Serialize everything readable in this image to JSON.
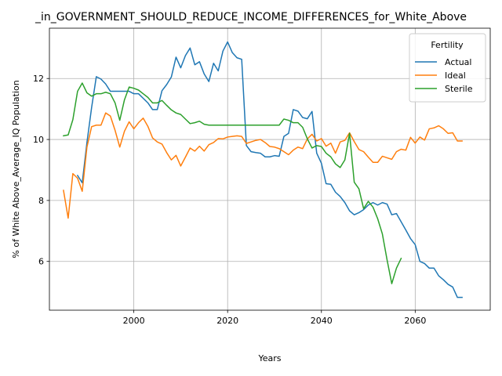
{
  "chart_data": {
    "type": "line",
    "title": "_in_GOVERNMENT_SHOULD_REDUCE_INCOME_DIFFERENCES_for_White_Above",
    "xlabel": "Years",
    "ylabel": "% of White Above_Average_IQ Population",
    "xlim": [
      1982,
      2076
    ],
    "ylim": [
      4.4,
      13.65
    ],
    "xticks": [
      2000,
      2020,
      2040,
      2060
    ],
    "yticks": [
      6,
      8,
      10,
      12
    ],
    "grid": true,
    "legend": {
      "title": "Fertility",
      "placement": "upper-right"
    },
    "series": [
      {
        "name": "Actual",
        "color": "#1f77b4",
        "points": [
          [
            1988,
            8.82
          ],
          [
            1989,
            8.58
          ],
          [
            1990,
            9.9
          ],
          [
            1991,
            11.05
          ],
          [
            1992,
            12.06
          ],
          [
            1993,
            11.98
          ],
          [
            1994,
            11.82
          ],
          [
            1995,
            11.58
          ],
          [
            1996,
            11.58
          ],
          [
            1997,
            11.58
          ],
          [
            1998,
            11.58
          ],
          [
            1999,
            11.58
          ],
          [
            2000,
            11.5
          ],
          [
            2001,
            11.5
          ],
          [
            2002,
            11.35
          ],
          [
            2003,
            11.2
          ],
          [
            2004,
            10.98
          ],
          [
            2005,
            10.98
          ],
          [
            2006,
            11.6
          ],
          [
            2007,
            11.8
          ],
          [
            2008,
            12.05
          ],
          [
            2009,
            12.7
          ],
          [
            2010,
            12.35
          ],
          [
            2011,
            12.75
          ],
          [
            2012,
            13.0
          ],
          [
            2013,
            12.45
          ],
          [
            2014,
            12.55
          ],
          [
            2015,
            12.15
          ],
          [
            2016,
            11.9
          ],
          [
            2017,
            12.5
          ],
          [
            2018,
            12.25
          ],
          [
            2019,
            12.9
          ],
          [
            2020,
            13.2
          ],
          [
            2021,
            12.85
          ],
          [
            2022,
            12.68
          ],
          [
            2023,
            12.63
          ],
          [
            2024,
            9.8
          ],
          [
            2025,
            9.6
          ],
          [
            2026,
            9.57
          ],
          [
            2027,
            9.55
          ],
          [
            2028,
            9.43
          ],
          [
            2029,
            9.43
          ],
          [
            2030,
            9.47
          ],
          [
            2031,
            9.45
          ],
          [
            2032,
            10.1
          ],
          [
            2033,
            10.2
          ],
          [
            2034,
            10.98
          ],
          [
            2035,
            10.93
          ],
          [
            2036,
            10.72
          ],
          [
            2037,
            10.68
          ],
          [
            2038,
            10.92
          ],
          [
            2039,
            9.55
          ],
          [
            2040,
            9.22
          ],
          [
            2041,
            8.55
          ],
          [
            2042,
            8.53
          ],
          [
            2043,
            8.27
          ],
          [
            2044,
            8.13
          ],
          [
            2045,
            7.93
          ],
          [
            2046,
            7.66
          ],
          [
            2047,
            7.53
          ],
          [
            2048,
            7.6
          ],
          [
            2049,
            7.7
          ],
          [
            2050,
            7.85
          ],
          [
            2051,
            7.93
          ],
          [
            2052,
            7.85
          ],
          [
            2053,
            7.93
          ],
          [
            2054,
            7.88
          ],
          [
            2055,
            7.53
          ],
          [
            2056,
            7.57
          ],
          [
            2057,
            7.3
          ],
          [
            2058,
            7.03
          ],
          [
            2059,
            6.75
          ],
          [
            2060,
            6.55
          ],
          [
            2061,
            6.0
          ],
          [
            2062,
            5.93
          ],
          [
            2063,
            5.78
          ],
          [
            2064,
            5.78
          ],
          [
            2065,
            5.53
          ],
          [
            2066,
            5.4
          ],
          [
            2067,
            5.25
          ],
          [
            2068,
            5.16
          ],
          [
            2069,
            4.82
          ],
          [
            2070,
            4.82
          ]
        ]
      },
      {
        "name": "Ideal",
        "color": "#ff7f0e",
        "points": [
          [
            1985,
            8.33
          ],
          [
            1986,
            7.42
          ],
          [
            1987,
            8.88
          ],
          [
            1988,
            8.73
          ],
          [
            1989,
            8.3
          ],
          [
            1990,
            9.75
          ],
          [
            1991,
            10.42
          ],
          [
            1992,
            10.47
          ],
          [
            1993,
            10.47
          ],
          [
            1994,
            10.87
          ],
          [
            1995,
            10.77
          ],
          [
            1996,
            10.3
          ],
          [
            1997,
            9.75
          ],
          [
            1998,
            10.27
          ],
          [
            1999,
            10.58
          ],
          [
            2000,
            10.35
          ],
          [
            2001,
            10.55
          ],
          [
            2002,
            10.7
          ],
          [
            2003,
            10.43
          ],
          [
            2004,
            10.05
          ],
          [
            2005,
            9.92
          ],
          [
            2006,
            9.85
          ],
          [
            2007,
            9.57
          ],
          [
            2008,
            9.33
          ],
          [
            2009,
            9.48
          ],
          [
            2010,
            9.13
          ],
          [
            2011,
            9.42
          ],
          [
            2012,
            9.72
          ],
          [
            2013,
            9.62
          ],
          [
            2014,
            9.78
          ],
          [
            2015,
            9.62
          ],
          [
            2016,
            9.83
          ],
          [
            2017,
            9.9
          ],
          [
            2018,
            10.03
          ],
          [
            2019,
            10.02
          ],
          [
            2020,
            10.08
          ],
          [
            2021,
            10.1
          ],
          [
            2022,
            10.12
          ],
          [
            2023,
            10.1
          ],
          [
            2024,
            9.87
          ],
          [
            2025,
            9.92
          ],
          [
            2026,
            9.97
          ],
          [
            2027,
            10.0
          ],
          [
            2028,
            9.9
          ],
          [
            2029,
            9.77
          ],
          [
            2030,
            9.75
          ],
          [
            2031,
            9.7
          ],
          [
            2032,
            9.6
          ],
          [
            2033,
            9.5
          ],
          [
            2034,
            9.65
          ],
          [
            2035,
            9.75
          ],
          [
            2036,
            9.7
          ],
          [
            2037,
            10.02
          ],
          [
            2038,
            10.17
          ],
          [
            2039,
            9.95
          ],
          [
            2040,
            10.03
          ],
          [
            2041,
            9.78
          ],
          [
            2042,
            9.88
          ],
          [
            2043,
            9.55
          ],
          [
            2044,
            9.92
          ],
          [
            2045,
            9.97
          ],
          [
            2046,
            10.22
          ],
          [
            2047,
            9.93
          ],
          [
            2048,
            9.67
          ],
          [
            2049,
            9.6
          ],
          [
            2050,
            9.42
          ],
          [
            2051,
            9.25
          ],
          [
            2052,
            9.25
          ],
          [
            2053,
            9.45
          ],
          [
            2054,
            9.4
          ],
          [
            2055,
            9.35
          ],
          [
            2056,
            9.6
          ],
          [
            2057,
            9.68
          ],
          [
            2058,
            9.65
          ],
          [
            2059,
            10.07
          ],
          [
            2060,
            9.88
          ],
          [
            2061,
            10.08
          ],
          [
            2062,
            9.98
          ],
          [
            2063,
            10.35
          ],
          [
            2064,
            10.38
          ],
          [
            2065,
            10.45
          ],
          [
            2066,
            10.35
          ],
          [
            2067,
            10.2
          ],
          [
            2068,
            10.22
          ],
          [
            2069,
            9.95
          ],
          [
            2070,
            9.95
          ]
        ]
      },
      {
        "name": "Sterile",
        "color": "#2ca02c",
        "points": [
          [
            1985,
            10.12
          ],
          [
            1986,
            10.15
          ],
          [
            1987,
            10.65
          ],
          [
            1988,
            11.58
          ],
          [
            1989,
            11.85
          ],
          [
            1990,
            11.53
          ],
          [
            1991,
            11.42
          ],
          [
            1992,
            11.5
          ],
          [
            1993,
            11.5
          ],
          [
            1994,
            11.55
          ],
          [
            1995,
            11.5
          ],
          [
            1996,
            11.2
          ],
          [
            1997,
            10.63
          ],
          [
            1998,
            11.3
          ],
          [
            1999,
            11.72
          ],
          [
            2000,
            11.68
          ],
          [
            2001,
            11.62
          ],
          [
            2002,
            11.5
          ],
          [
            2003,
            11.38
          ],
          [
            2004,
            11.2
          ],
          [
            2005,
            11.2
          ],
          [
            2006,
            11.28
          ],
          [
            2007,
            11.12
          ],
          [
            2008,
            10.97
          ],
          [
            2009,
            10.87
          ],
          [
            2010,
            10.82
          ],
          [
            2011,
            10.67
          ],
          [
            2012,
            10.52
          ],
          [
            2013,
            10.55
          ],
          [
            2014,
            10.6
          ],
          [
            2015,
            10.5
          ],
          [
            2016,
            10.47
          ],
          [
            2017,
            10.47
          ],
          [
            2018,
            10.47
          ],
          [
            2019,
            10.47
          ],
          [
            2020,
            10.47
          ],
          [
            2021,
            10.47
          ],
          [
            2022,
            10.47
          ],
          [
            2023,
            10.47
          ],
          [
            2024,
            10.47
          ],
          [
            2025,
            10.47
          ],
          [
            2026,
            10.47
          ],
          [
            2027,
            10.47
          ],
          [
            2028,
            10.47
          ],
          [
            2029,
            10.47
          ],
          [
            2030,
            10.47
          ],
          [
            2031,
            10.47
          ],
          [
            2032,
            10.67
          ],
          [
            2033,
            10.63
          ],
          [
            2034,
            10.55
          ],
          [
            2035,
            10.55
          ],
          [
            2036,
            10.4
          ],
          [
            2037,
            10.02
          ],
          [
            2038,
            9.72
          ],
          [
            2039,
            9.8
          ],
          [
            2040,
            9.77
          ],
          [
            2041,
            9.55
          ],
          [
            2042,
            9.43
          ],
          [
            2043,
            9.2
          ],
          [
            2044,
            9.08
          ],
          [
            2045,
            9.33
          ],
          [
            2046,
            10.2
          ],
          [
            2047,
            8.6
          ],
          [
            2048,
            8.38
          ],
          [
            2049,
            7.73
          ],
          [
            2050,
            7.97
          ],
          [
            2051,
            7.78
          ],
          [
            2052,
            7.4
          ],
          [
            2053,
            6.9
          ],
          [
            2054,
            6.05
          ],
          [
            2055,
            5.27
          ],
          [
            2056,
            5.78
          ],
          [
            2057,
            6.1
          ]
        ]
      }
    ]
  }
}
